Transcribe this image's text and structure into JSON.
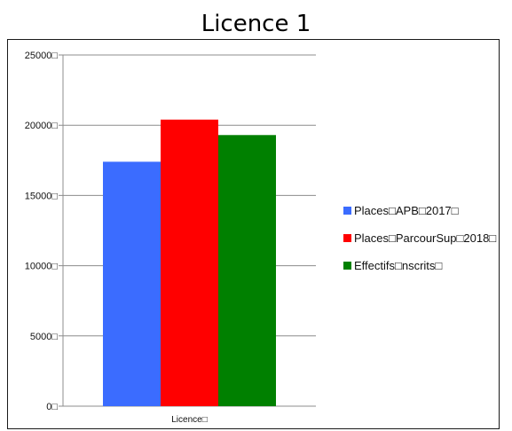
{
  "chart_data": {
    "type": "bar",
    "title": "Licence 1",
    "categories": [
      "Licence□"
    ],
    "series": [
      {
        "name": "Places□APB□2017□",
        "values": [
          17400
        ],
        "color": "#3b6cff"
      },
      {
        "name": "Places□ParcourSup□2018□",
        "values": [
          20400
        ],
        "color": "#ff0000"
      },
      {
        "name": "Effectifs□nscrits□",
        "values": [
          19300
        ],
        "color": "#008000"
      }
    ],
    "ylim": [
      0,
      25000
    ],
    "yticks": [
      0,
      5000,
      10000,
      15000,
      20000,
      25000
    ],
    "ytick_labels": [
      "0□",
      "5000□",
      "10000□",
      "15000□",
      "20000□",
      "25000□"
    ],
    "grid": true,
    "legend_position": "right"
  }
}
